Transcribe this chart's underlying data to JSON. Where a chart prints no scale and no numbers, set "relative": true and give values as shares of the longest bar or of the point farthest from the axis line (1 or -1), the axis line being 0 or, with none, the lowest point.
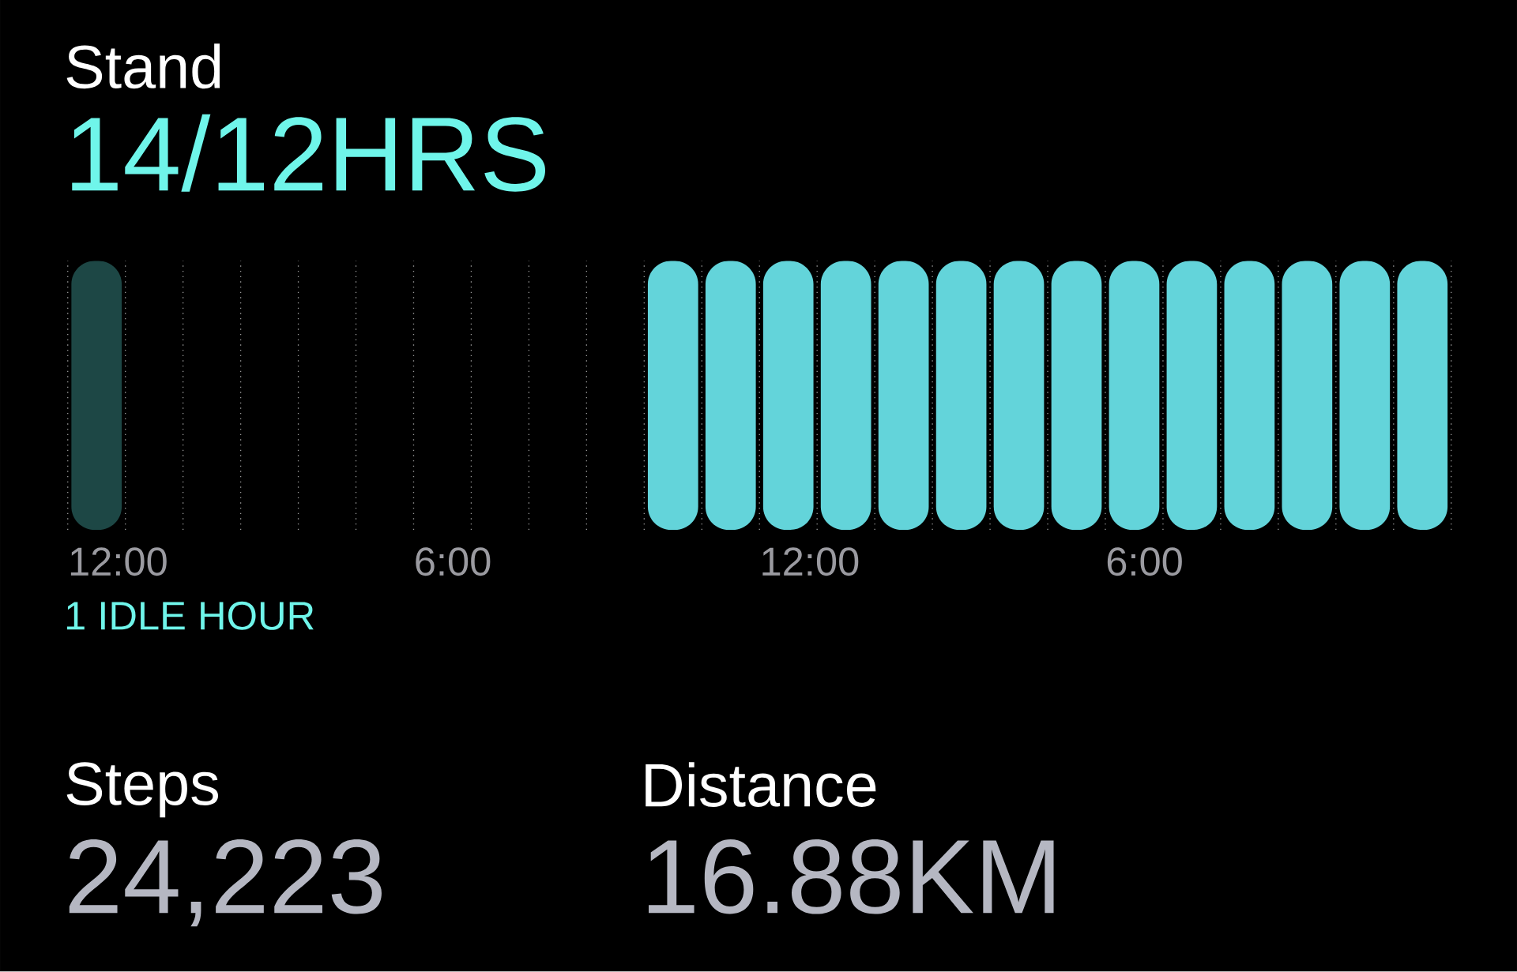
{
  "chart_data": {
    "type": "bar",
    "title": "Stand",
    "subtitle": "14/12HRS",
    "categories": [
      "12:00",
      null,
      null,
      null,
      null,
      null,
      "6:00",
      null,
      null,
      null,
      null,
      null,
      "12:00",
      null,
      null,
      null,
      null,
      null,
      "6:00",
      null,
      null,
      null,
      null,
      null
    ],
    "values": [
      1,
      0,
      0,
      0,
      0,
      0,
      0,
      0,
      0,
      0,
      1,
      1,
      1,
      1,
      1,
      1,
      1,
      1,
      1,
      1,
      1,
      1,
      1,
      1
    ],
    "colors": [
      "#1d4745",
      "#63d4da",
      "#63d4da",
      "#63d4da",
      "#63d4da",
      "#63d4da",
      "#63d4da",
      "#63d4da",
      "#63d4da",
      "#63d4da",
      "#63d4da",
      "#63d4da",
      "#63d4da",
      "#63d4da",
      "#63d4da",
      "#63d4da",
      "#63d4da",
      "#63d4da",
      "#63d4da",
      "#63d4da",
      "#63d4da",
      "#63d4da",
      "#63d4da",
      "#63d4da"
    ],
    "relative": true,
    "grid": "x",
    "tick_labels": "x",
    "annotations": [
      "1 IDLE HOUR",
      "Steps",
      "24,223",
      "Distance",
      "16.88KM"
    ]
  }
}
